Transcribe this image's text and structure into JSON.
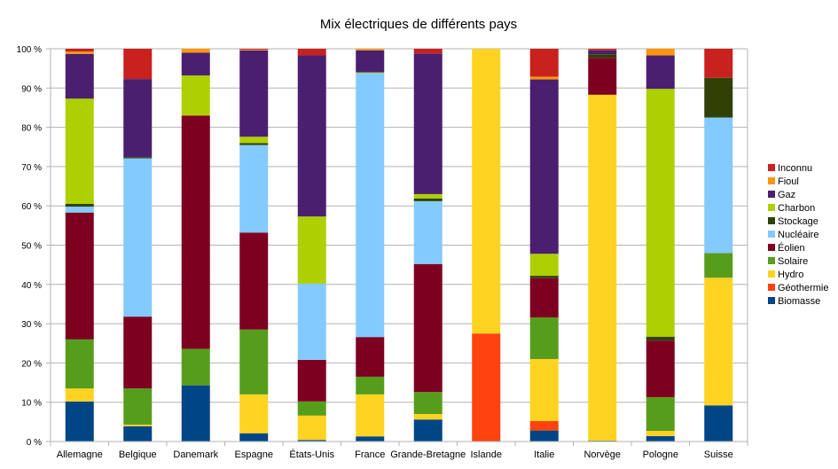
{
  "chart_data": {
    "type": "bar",
    "stacked": true,
    "title": "Mix électriques de différents pays",
    "xlabel": "",
    "ylabel": "",
    "ylim": [
      0,
      100
    ],
    "yticks": [
      "0 %",
      "10 %",
      "20 %",
      "30 %",
      "40 %",
      "50 %",
      "60 %",
      "70 %",
      "80 %",
      "90 %",
      "100 %"
    ],
    "grid": true,
    "legend_position": "right",
    "categories": [
      "Allemagne",
      "Belgique",
      "Danemark",
      "Espagne",
      "États-Unis",
      "France",
      "Grande-Bretagne",
      "Islande",
      "Italie",
      "Norvège",
      "Pologne",
      "Suisse"
    ],
    "series": [
      {
        "name": "Biomasse",
        "color": "#004586",
        "values": [
          10.2,
          3.9,
          14.3,
          2.1,
          0.4,
          1.3,
          5.6,
          0,
          2.8,
          0.2,
          1.4,
          9.2
        ]
      },
      {
        "name": "Géothermie",
        "color": "#ff420e",
        "values": [
          0,
          0,
          0,
          0,
          0,
          0,
          0,
          27.5,
          2.4,
          0,
          0,
          0
        ]
      },
      {
        "name": "Hydro",
        "color": "#ffd320",
        "values": [
          3.3,
          0.4,
          0,
          9.9,
          6.2,
          10.7,
          1.4,
          72.5,
          15.8,
          88.1,
          1.3,
          32.5
        ]
      },
      {
        "name": "Solaire",
        "color": "#579d1c",
        "values": [
          12.5,
          9.2,
          9.3,
          16.5,
          3.6,
          4.5,
          5.6,
          0,
          10.6,
          0,
          8.6,
          6.3
        ]
      },
      {
        "name": "Éolien",
        "color": "#7e0021",
        "values": [
          32.3,
          18.3,
          59.4,
          24.7,
          10.6,
          10.1,
          32.6,
          0,
          10.0,
          9.4,
          14.4,
          0
        ]
      },
      {
        "name": "Nucléaire",
        "color": "#83caff",
        "values": [
          1.5,
          40.3,
          0,
          22.3,
          19.4,
          67.2,
          16.0,
          0,
          0,
          0,
          0,
          34.5
        ]
      },
      {
        "name": "Stockage",
        "color": "#314004",
        "values": [
          0.7,
          0.3,
          0,
          0.5,
          0,
          0,
          0.7,
          0,
          0.6,
          0.9,
          1.0,
          10.1
        ]
      },
      {
        "name": "Charbon",
        "color": "#aecf00",
        "values": [
          26.8,
          0,
          10.2,
          1.6,
          17.1,
          0.2,
          1.1,
          0,
          5.6,
          0,
          63.1,
          0
        ]
      },
      {
        "name": "Gaz",
        "color": "#4b1f6f",
        "values": [
          11.4,
          19.9,
          5.8,
          22.0,
          41.0,
          5.6,
          35.8,
          0,
          44.4,
          1.0,
          8.5,
          0
        ]
      },
      {
        "name": "Fioul",
        "color": "#ff950e",
        "values": [
          0.6,
          0,
          1.0,
          0.2,
          0,
          0.4,
          0,
          0,
          0.7,
          0,
          1.7,
          0
        ]
      },
      {
        "name": "Inconnu",
        "color": "#c9211e",
        "values": [
          0.7,
          7.7,
          0,
          0.2,
          1.7,
          0,
          1.2,
          0,
          7.1,
          0.4,
          0,
          7.4
        ]
      }
    ]
  }
}
